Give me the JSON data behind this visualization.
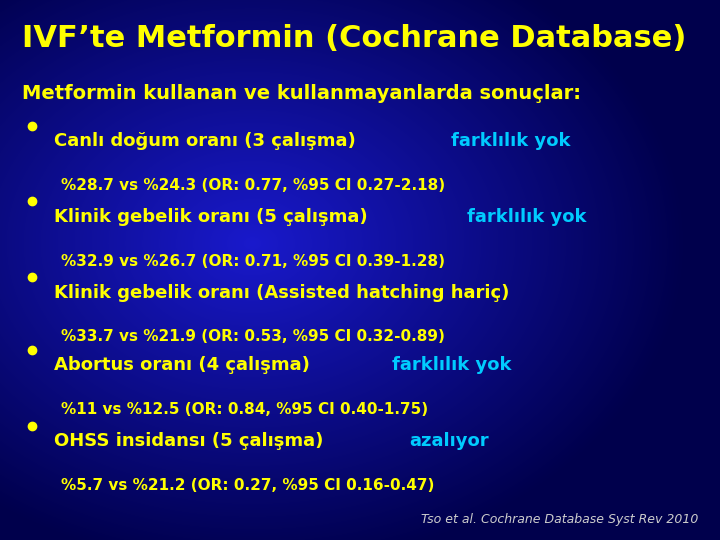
{
  "title": "IVF’te Metformin (Cochrane Database)",
  "title_color": "#FFFF00",
  "title_fontsize": 22,
  "subtitle": "Metformin kullanan ve kullanmayanlarda sonuçlar:",
  "subtitle_color": "#FFFF00",
  "subtitle_fontsize": 14,
  "bg_colors": [
    "#00008B",
    "#0000CD",
    "#1010AA",
    "#00008B"
  ],
  "bullet_color": "#FFFF00",
  "bullet_points": [
    {
      "main_text": "Canlı doğum oranı (3 çalışma) ",
      "highlight_text": "farklılık yok",
      "sub_text": "%28.7 vs %24.3 (OR: 0.77, %95 CI 0.27-2.18)",
      "main_color": "#FFFF00",
      "highlight_color": "#00CCFF",
      "sub_color": "#FFFF00",
      "bullet_color": "#FFFF00"
    },
    {
      "main_text": "Klinik gebelik oranı (5 çalışma) ",
      "highlight_text": "farklılık yok",
      "sub_text": "%32.9 vs %26.7 (OR: 0.71, %95 CI 0.39-1.28)",
      "main_color": "#FFFF00",
      "highlight_color": "#00CCFF",
      "sub_color": "#FFFF00",
      "bullet_color": "#FFFF00"
    },
    {
      "main_text": "Klinik gebelik oranı (Assisted hatching hariç)",
      "highlight_text": "",
      "sub_text": "%33.7 vs %21.9 (OR: 0.53, %95 CI 0.32-0.89)",
      "main_color": "#FFFF00",
      "highlight_color": "#00CCFF",
      "sub_color": "#FFFF00",
      "bullet_color": "#FFFF00"
    },
    {
      "main_text": "Abortus oranı (4 çalışma) ",
      "highlight_text": "farklılık yok",
      "sub_text": "%11 vs %12.5 (OR: 0.84, %95 CI 0.40-1.75)",
      "main_color": "#FFFF00",
      "highlight_color": "#00CCFF",
      "sub_color": "#FFFF00",
      "bullet_color": "#FFFF00"
    },
    {
      "main_text": "OHSS insidansı (5 çalışma) ",
      "highlight_text": "azalıyor",
      "sub_text": "%5.7 vs %21.2 (OR: 0.27, %95 CI 0.16-0.47)",
      "main_color": "#FFFF00",
      "highlight_color": "#00CCFF",
      "sub_color": "#FFFF00",
      "bullet_color": "#FFFF00"
    }
  ],
  "footer_text": "Tso et al. Cochrane Database Syst Rev 2010",
  "footer_color": "#CCCCCC",
  "footer_fontsize": 9,
  "main_fontsize": 13,
  "sub_fontsize": 11
}
